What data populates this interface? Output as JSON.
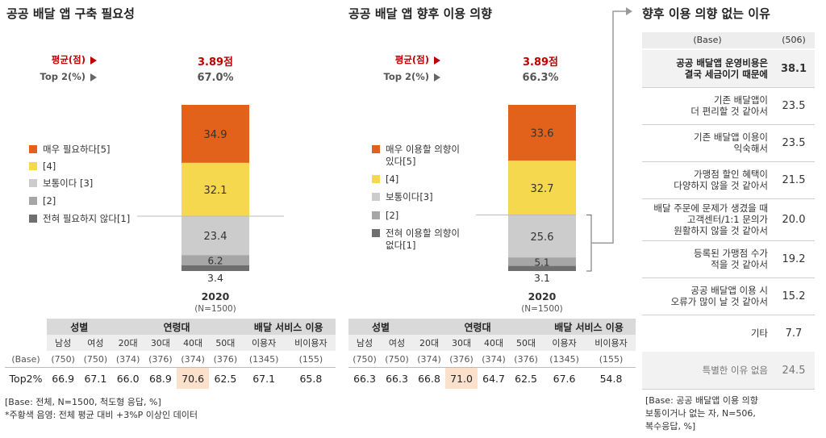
{
  "left": {
    "title": "공공 배달 앱 구축 필요성",
    "avg_label": "평균(점)",
    "avg_value": "3.89점",
    "top2_label": "Top 2(%)",
    "top2_value": "67.0%",
    "year": "2020",
    "n": "(N=1500)",
    "legend": [
      "매우 필요하다[5]",
      "[4]",
      "보통이다 [3]",
      "[2]",
      "전혀 필요하지 않다[1]"
    ]
  },
  "mid": {
    "title": "공공 배달 앱 향후 이용 의향",
    "avg_label": "평균(점)",
    "avg_value": "3.89점",
    "top2_label": "Top 2(%)",
    "top2_value": "66.3%",
    "year": "2020",
    "n": "(N=1500)",
    "legend": [
      "매우 이용할 의향이\n있다[5]",
      "[4]",
      "보통이다[3]",
      "[2]",
      "전혀 이용할 의향이\n없다[1]"
    ]
  },
  "colors": {
    "s5": "#e2621b",
    "s4": "#f5d84d",
    "s3": "#cccccc",
    "s2": "#a6a6a6",
    "s1": "#6f6f6f",
    "highlight": "#fbe0cc",
    "avg_red": "#c00000"
  },
  "chart_data": [
    {
      "type": "bar",
      "stacked": true,
      "title": "공공 배달 앱 구축 필요성",
      "categories": [
        "2020"
      ],
      "series": [
        {
          "name": "매우 필요하다[5]",
          "values": [
            34.9
          ]
        },
        {
          "name": "[4]",
          "values": [
            32.1
          ]
        },
        {
          "name": "보통이다 [3]",
          "values": [
            23.4
          ]
        },
        {
          "name": "[2]",
          "values": [
            6.2
          ]
        },
        {
          "name": "전혀 필요하지 않다[1]",
          "values": [
            3.4
          ]
        }
      ],
      "ylim": [
        0,
        100
      ]
    },
    {
      "type": "bar",
      "stacked": true,
      "title": "공공 배달 앱 향후 이용 의향",
      "categories": [
        "2020"
      ],
      "series": [
        {
          "name": "매우 이용할 의향이 있다[5]",
          "values": [
            33.6
          ]
        },
        {
          "name": "[4]",
          "values": [
            32.7
          ]
        },
        {
          "name": "보통이다[3]",
          "values": [
            25.6
          ]
        },
        {
          "name": "[2]",
          "values": [
            5.1
          ]
        },
        {
          "name": "전혀 이용할 의향이 없다[1]",
          "values": [
            3.1
          ]
        }
      ],
      "ylim": [
        0,
        100
      ]
    },
    {
      "type": "table",
      "title": "향후 이용 의향 없는 이유",
      "header": [
        "(Base)",
        "(506)"
      ],
      "rows": [
        {
          "label": "공공 배달앱 운영비용은\n결국 세금이기 때문에",
          "value": 38.1,
          "bold": true
        },
        {
          "label": "기존 배달앱이\n더 편리할 것 같아서",
          "value": 23.5
        },
        {
          "label": "기존 배달앱 이용이\n익숙해서",
          "value": 23.5
        },
        {
          "label": "가맹점 할인 혜택이\n다양하지 않을 것 같아서",
          "value": 21.5
        },
        {
          "label": "배달 주문에 문제가 생겼을 때\n고객센터/1:1 문의가\n원활하지 않을 것 같아서",
          "value": 20.0
        },
        {
          "label": "등록된 가맹점 수가\n적을 것 같아서",
          "value": 19.2
        },
        {
          "label": "공공 배달앱 이용 시\n오류가 많이 날 것 같아서",
          "value": 15.2
        },
        {
          "label": "기타",
          "value": 7.7
        },
        {
          "label": "특별한 이유 없음",
          "value": 24.5,
          "muted": true
        }
      ]
    }
  ],
  "table_left": {
    "groups": [
      "성별",
      "연령대",
      "배달 서비스 이용"
    ],
    "subs": [
      "남성",
      "여성",
      "20대",
      "30대",
      "40대",
      "50대",
      "이용자",
      "비이용자"
    ],
    "base_label": "(Base)",
    "base": [
      "(750)",
      "(750)",
      "(374)",
      "(376)",
      "(374)",
      "(376)",
      "(1345)",
      "(155)"
    ],
    "top_label": "Top2%",
    "top": [
      "66.9",
      "67.1",
      "66.0",
      "68.9",
      "70.6",
      "62.5",
      "67.1",
      "65.8"
    ]
  },
  "table_mid": {
    "groups": [
      "성별",
      "연령대",
      "배달 서비스 이용"
    ],
    "subs": [
      "남성",
      "여성",
      "20대",
      "30대",
      "40대",
      "50대",
      "이용자",
      "비이용자"
    ],
    "base": [
      "(750)",
      "(750)",
      "(374)",
      "(376)",
      "(374)",
      "(376)",
      "(1345)",
      "(155)"
    ],
    "top": [
      "66.3",
      "66.3",
      "66.8",
      "71.0",
      "64.7",
      "62.5",
      "67.6",
      "54.8"
    ]
  },
  "notes_left": [
    "[Base: 전체, N=1500, 척도형 응답, %]",
    "*주황색 음영: 전체 평균 대비 +3%P 이상인 데이터"
  ],
  "right": {
    "title": "향후 이용 의향 없는 이유",
    "notes": [
      "[Base: 공공 배달앱 이용 의향",
      "보통이거나 없는 자, N=506,",
      "복수응답, %]"
    ]
  }
}
